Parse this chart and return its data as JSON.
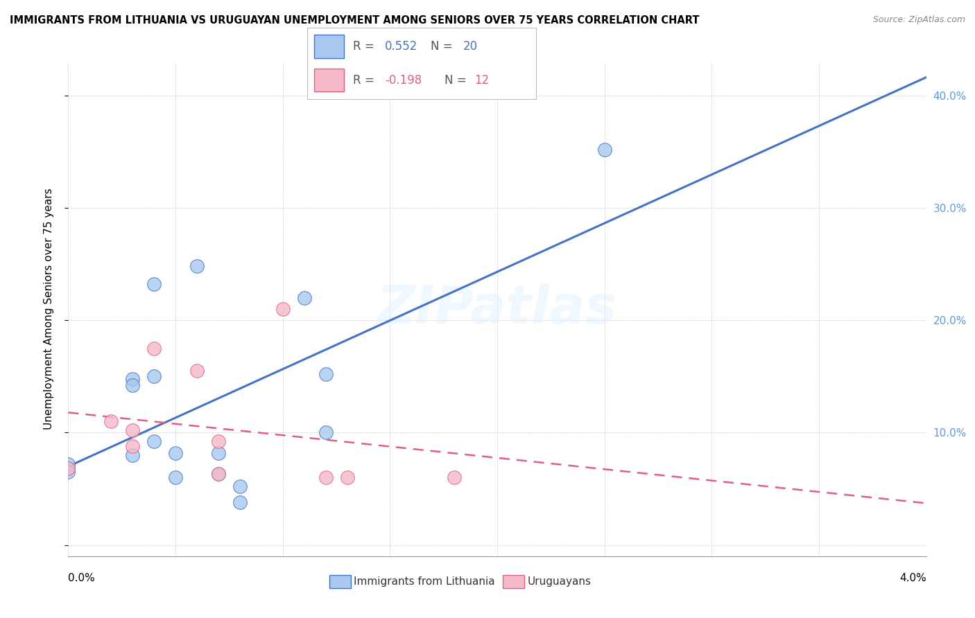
{
  "title": "IMMIGRANTS FROM LITHUANIA VS URUGUAYAN UNEMPLOYMENT AMONG SENIORS OVER 75 YEARS CORRELATION CHART",
  "source": "Source: ZipAtlas.com",
  "ylabel": "Unemployment Among Seniors over 75 years",
  "x_range": [
    0.0,
    0.04
  ],
  "y_range": [
    -0.01,
    0.43
  ],
  "blue_label": "Immigrants from Lithuania",
  "pink_label": "Uruguayans",
  "blue_R": "0.552",
  "blue_N": "20",
  "pink_R": "-0.198",
  "pink_N": "12",
  "blue_face": "#A8C8F0",
  "blue_edge": "#4472C4",
  "pink_face": "#F4B8C8",
  "pink_edge": "#E06080",
  "blue_line": "#4472C4",
  "pink_line": "#E06080",
  "y_ticks": [
    0.0,
    0.1,
    0.2,
    0.3,
    0.4
  ],
  "y_tick_labels": [
    "",
    "10.0%",
    "20.0%",
    "30.0%",
    "40.0%"
  ],
  "blue_dots": [
    [
      0.0,
      0.068
    ],
    [
      0.0,
      0.072
    ],
    [
      0.0,
      0.065
    ],
    [
      0.003,
      0.148
    ],
    [
      0.003,
      0.142
    ],
    [
      0.003,
      0.08
    ],
    [
      0.004,
      0.232
    ],
    [
      0.004,
      0.092
    ],
    [
      0.004,
      0.15
    ],
    [
      0.005,
      0.082
    ],
    [
      0.005,
      0.06
    ],
    [
      0.006,
      0.248
    ],
    [
      0.007,
      0.082
    ],
    [
      0.007,
      0.063
    ],
    [
      0.008,
      0.052
    ],
    [
      0.008,
      0.038
    ],
    [
      0.011,
      0.22
    ],
    [
      0.012,
      0.152
    ],
    [
      0.012,
      0.1
    ],
    [
      0.025,
      0.352
    ]
  ],
  "pink_dots": [
    [
      0.0,
      0.068
    ],
    [
      0.002,
      0.11
    ],
    [
      0.003,
      0.102
    ],
    [
      0.003,
      0.088
    ],
    [
      0.004,
      0.175
    ],
    [
      0.006,
      0.155
    ],
    [
      0.007,
      0.092
    ],
    [
      0.007,
      0.063
    ],
    [
      0.01,
      0.21
    ],
    [
      0.012,
      0.06
    ],
    [
      0.013,
      0.06
    ],
    [
      0.018,
      0.06
    ]
  ]
}
